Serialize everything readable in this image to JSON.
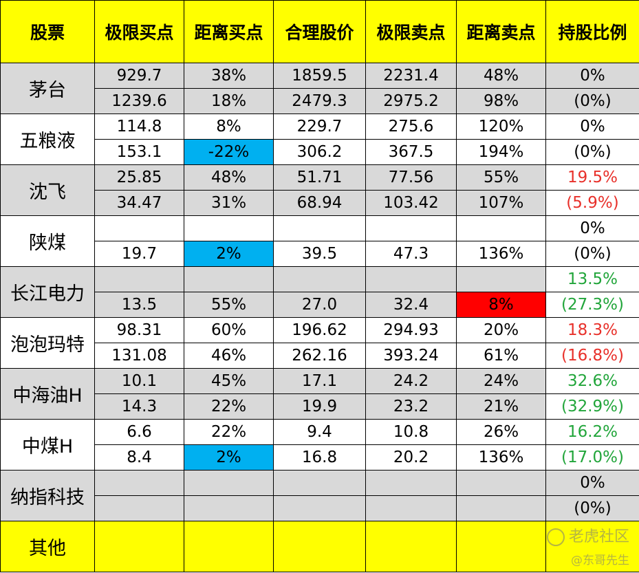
{
  "headers": [
    "股票",
    "极限买点",
    "距离买点",
    "合理股价",
    "极限卖点",
    "距离卖点",
    "持股比例"
  ],
  "stocks": [
    {
      "name": "茅台",
      "bg": "gray",
      "holding_color": "black",
      "rows": [
        [
          "929.7",
          "38%",
          "1859.5",
          "2231.4",
          "48%"
        ],
        [
          "1239.6",
          "18%",
          "2479.3",
          "2975.2",
          "98%"
        ]
      ],
      "holding": [
        "0%",
        "(0%)"
      ]
    },
    {
      "name": "五粮液",
      "bg": "white",
      "holding_color": "black",
      "rows": [
        [
          "114.8",
          "8%",
          "229.7",
          "275.6",
          "120%"
        ],
        [
          "153.1",
          "-22%",
          "306.2",
          "367.5",
          "194%"
        ]
      ],
      "holding": [
        "0%",
        "(0%)"
      ]
    },
    {
      "name": "沈飞",
      "bg": "gray",
      "holding_color": "red",
      "rows": [
        [
          "25.85",
          "48%",
          "51.71",
          "77.56",
          "55%"
        ],
        [
          "34.47",
          "31%",
          "68.94",
          "103.42",
          "107%"
        ]
      ],
      "holding": [
        "19.5%",
        "(5.9%)"
      ]
    },
    {
      "name": "陕煤",
      "bg": "white",
      "holding_color": "black",
      "rows": [
        [
          "",
          "",
          "",
          "",
          ""
        ],
        [
          "19.7",
          "2%",
          "39.5",
          "47.3",
          "136%"
        ]
      ],
      "holding": [
        "0%",
        "(0%)"
      ]
    },
    {
      "name": "长江电力",
      "bg": "gray",
      "holding_color": "green",
      "rows": [
        [
          "",
          "",
          "",
          "",
          ""
        ],
        [
          "13.5",
          "55%",
          "27.0",
          "32.4",
          "8%"
        ]
      ],
      "holding": [
        "13.5%",
        "(27.3%)"
      ]
    },
    {
      "name": "泡泡玛特",
      "bg": "white",
      "holding_color": "red",
      "rows": [
        [
          "98.31",
          "60%",
          "196.62",
          "294.93",
          "20%"
        ],
        [
          "131.08",
          "46%",
          "262.16",
          "393.24",
          "61%"
        ]
      ],
      "holding": [
        "18.3%",
        "(16.8%)"
      ]
    },
    {
      "name": "中海油H",
      "bg": "gray",
      "holding_color": "green",
      "rows": [
        [
          "10.1",
          "45%",
          "17.1",
          "24.2",
          "24%"
        ],
        [
          "14.3",
          "22%",
          "19.9",
          "23.2",
          "21%"
        ]
      ],
      "holding": [
        "32.6%",
        "(32.9%)"
      ]
    },
    {
      "name": "中煤H",
      "bg": "white",
      "holding_color": "green",
      "rows": [
        [
          "6.6",
          "22%",
          "9.4",
          "10.8",
          "26%"
        ],
        [
          "8.4",
          "2%",
          "16.8",
          "20.2",
          "136%"
        ]
      ],
      "holding": [
        "16.2%",
        "(17.0%)"
      ]
    },
    {
      "name": "纳指科技",
      "bg": "gray",
      "holding_color": "black",
      "rows": [
        [
          "",
          "",
          "",
          "",
          ""
        ],
        [
          "",
          "",
          "",
          "",
          ""
        ]
      ],
      "holding": [
        "0%",
        "(0%)"
      ]
    }
  ],
  "other": {
    "name": "其他"
  },
  "highlights": [
    {
      "stock": 1,
      "row": 1,
      "col": 1,
      "color": "blue"
    },
    {
      "stock": 3,
      "row": 1,
      "col": 1,
      "color": "blue"
    },
    {
      "stock": 4,
      "row": 1,
      "col": 4,
      "color": "red"
    },
    {
      "stock": 7,
      "row": 1,
      "col": 1,
      "color": "blue"
    }
  ],
  "watermark": {
    "line1": "老虎社区",
    "line2": "@东哥先生"
  },
  "colors": {
    "header_bg": "#ffff00",
    "row_gray": "#d9d9d9",
    "highlight_blue": "#00b0f0",
    "highlight_red": "#ff0000",
    "text_red": "#e8302a",
    "text_green": "#21a53a"
  }
}
